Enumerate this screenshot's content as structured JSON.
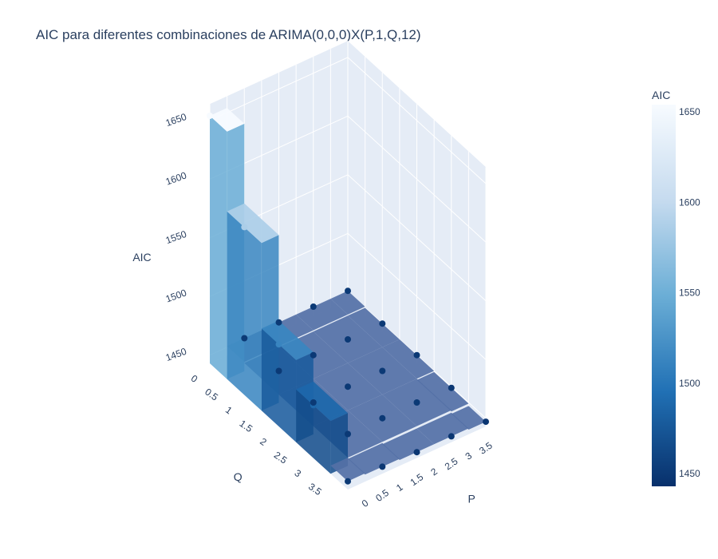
{
  "title": "AIC para diferentes combinaciones de ARIMA(0,0,0)X(P,1,Q,12)",
  "colorbar": {
    "title": "AIC",
    "ticks": [
      "1450",
      "1500",
      "1550",
      "1600",
      "1650"
    ],
    "tick_values": [
      1450,
      1500,
      1550,
      1600,
      1650
    ],
    "range": [
      1443,
      1654
    ],
    "colorscale": [
      "#08306b",
      "#2171b5",
      "#6baed6",
      "#c6dbef",
      "#f7fbff"
    ]
  },
  "chart_data": {
    "type": "surface3d",
    "title": "AIC para diferentes combinaciones de ARIMA(0,0,0)X(P,1,Q,12)",
    "x_label": "P",
    "y_label": "Q",
    "z_label": "AIC",
    "x_ticks": [
      "0",
      "0.5",
      "1",
      "1.5",
      "2",
      "2.5",
      "3",
      "3.5"
    ],
    "y_ticks": [
      "0",
      "0.5",
      "1",
      "1.5",
      "2",
      "2.5",
      "3",
      "3.5"
    ],
    "z_ticks": [
      "1450",
      "1500",
      "1550",
      "1600",
      "1650"
    ],
    "x_range": [
      0,
      4
    ],
    "y_range": [
      0,
      4
    ],
    "z_range": [
      1443,
      1654
    ],
    "grid": true,
    "surface": "step",
    "markers": true,
    "points": [
      {
        "P": 0,
        "Q": 0,
        "AIC": 1654
      },
      {
        "P": 0,
        "Q": 1,
        "AIC": 1586
      },
      {
        "P": 0,
        "Q": 2,
        "AIC": 1513
      },
      {
        "P": 0,
        "Q": 3,
        "AIC": 1488
      },
      {
        "P": 0,
        "Q": 4,
        "AIC": 1450
      },
      {
        "P": 1,
        "Q": 0,
        "AIC": 1451
      },
      {
        "P": 1,
        "Q": 1,
        "AIC": 1450
      },
      {
        "P": 1,
        "Q": 2,
        "AIC": 1450
      },
      {
        "P": 1,
        "Q": 3,
        "AIC": 1450
      },
      {
        "P": 1,
        "Q": 4,
        "AIC": 1449
      },
      {
        "P": 2,
        "Q": 0,
        "AIC": 1451
      },
      {
        "P": 2,
        "Q": 1,
        "AIC": 1450
      },
      {
        "P": 2,
        "Q": 2,
        "AIC": 1450
      },
      {
        "P": 2,
        "Q": 3,
        "AIC": 1450
      },
      {
        "P": 2,
        "Q": 4,
        "AIC": 1448
      },
      {
        "P": 3,
        "Q": 0,
        "AIC": 1451
      },
      {
        "P": 3,
        "Q": 1,
        "AIC": 1450
      },
      {
        "P": 3,
        "Q": 2,
        "AIC": 1450
      },
      {
        "P": 3,
        "Q": 3,
        "AIC": 1450
      },
      {
        "P": 3,
        "Q": 4,
        "AIC": 1448
      },
      {
        "P": 4,
        "Q": 0,
        "AIC": 1451
      },
      {
        "P": 4,
        "Q": 1,
        "AIC": 1450
      },
      {
        "P": 4,
        "Q": 2,
        "AIC": 1450
      },
      {
        "P": 4,
        "Q": 3,
        "AIC": 1449
      },
      {
        "P": 4,
        "Q": 4,
        "AIC": 1447
      }
    ]
  }
}
